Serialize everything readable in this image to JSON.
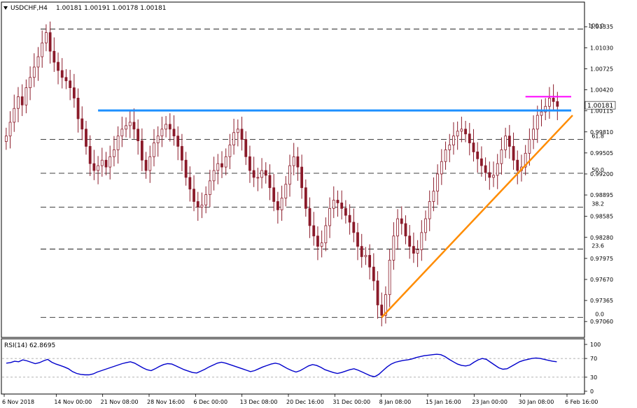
{
  "header": {
    "symbol": "USDCHF,H4",
    "ohlc": "1.00181 1.00191 1.00178 1.00181"
  },
  "indicator": {
    "label": "RSI(14) 62.8695"
  },
  "colors": {
    "candle": "#8b1b2a",
    "resistance": "#1e90ff",
    "support": "#ff8c00",
    "top": "#ff00ff",
    "rsi": "#0000cc",
    "price_tag_bg": "#ffffff"
  },
  "chart_data": [
    {
      "type": "candlestick",
      "title": "",
      "price_axis": {
        "range": [
          0.9691,
          1.0153
        ],
        "ticks": [
          "1.01335",
          "1.01030",
          "1.00725",
          "1.00420",
          "1.00115",
          "0.99810",
          "0.99505",
          "0.99200",
          "0.98895",
          "0.98585",
          "0.98280",
          "0.97975",
          "0.97670",
          "0.97365",
          "0.97060"
        ]
      },
      "time_axis": {
        "ticks": [
          "6 Nov 2018",
          "14 Nov 00:00",
          "21 Nov 08:00",
          "28 Nov 16:00",
          "6 Dec 00:00",
          "13 Dec 08:00",
          "20 Dec 16:00",
          "31 Dec 00:00",
          "8 Jan 08:00",
          "15 Jan 16:00",
          "23 Jan 00:00",
          "30 Jan 08:00",
          "6 Feb 16:00"
        ]
      },
      "current_price": "1.00181",
      "fibonacci_levels": [
        {
          "label": "100.0",
          "price": 1.013
        },
        {
          "label": "61.8",
          "price": 0.997
        },
        {
          "label": "50.0",
          "price": 0.9921
        },
        {
          "label": "38.2",
          "price": 0.9872
        },
        {
          "label": "23.6",
          "price": 0.9811
        },
        {
          "label": "0.0",
          "price": 0.9712
        }
      ],
      "closes": [
        0.9975,
        0.9995,
        1.0015,
        1.0032,
        1.002,
        1.0045,
        1.006,
        1.0075,
        1.009,
        1.011,
        1.0125,
        1.0098,
        1.0082,
        1.007,
        1.006,
        1.0055,
        1.0045,
        1.003,
        1.0,
        0.9985,
        0.996,
        0.9935,
        0.9925,
        0.9932,
        0.994,
        0.993,
        0.9945,
        0.9955,
        0.9975,
        0.9985,
        0.999,
        0.9995,
        0.9985,
        0.9968,
        0.994,
        0.9925,
        0.9945,
        0.9965,
        0.9975,
        0.9985,
        0.9992,
        0.9985,
        0.9975,
        0.996,
        0.994,
        0.9915,
        0.9898,
        0.988,
        0.9872,
        0.9875,
        0.989,
        0.991,
        0.9925,
        0.9935,
        0.993,
        0.9945,
        0.9962,
        0.998,
        0.9985,
        0.997,
        0.9945,
        0.9925,
        0.9915,
        0.9915,
        0.9925,
        0.9918,
        0.99,
        0.988,
        0.9868,
        0.9885,
        0.9905,
        0.9932,
        0.9945,
        0.993,
        0.99,
        0.987,
        0.9845,
        0.983,
        0.9815,
        0.982,
        0.9845,
        0.987,
        0.9882,
        0.9878,
        0.987,
        0.986,
        0.985,
        0.9835,
        0.9815,
        0.98,
        0.9802,
        0.9785,
        0.9765,
        0.973,
        0.9715,
        0.9745,
        0.9795,
        0.983,
        0.9855,
        0.9848,
        0.983,
        0.9815,
        0.9805,
        0.981,
        0.9835,
        0.9855,
        0.988,
        0.9895,
        0.992,
        0.9938,
        0.9955,
        0.9962,
        0.9975,
        0.9982,
        0.9985,
        0.9978,
        0.9965,
        0.9952,
        0.9942,
        0.9932,
        0.9922,
        0.9915,
        0.9918,
        0.9935,
        0.9955,
        0.9975,
        0.996,
        0.994,
        0.9925,
        0.993,
        0.995,
        0.997,
        0.9985,
        1.0005,
        1.001,
        1.0018,
        1.003,
        1.0025,
        1.0018
      ],
      "trendlines": [
        {
          "name": "horizontal resistance",
          "price": 1.0012
        },
        {
          "name": "rising support",
          "from_price": 0.9712,
          "to_price": 1.0005
        },
        {
          "name": "recent top",
          "price": 1.0032
        }
      ]
    },
    {
      "type": "line",
      "title": "RSI(14) 62.8695",
      "y_axis": {
        "range": [
          0,
          100
        ],
        "ticks": [
          "100",
          "70",
          "30",
          "0"
        ]
      },
      "levels": [
        70,
        30
      ],
      "values": [
        60,
        61,
        64,
        63,
        67,
        65,
        62,
        59,
        61,
        65,
        68,
        62,
        58,
        55,
        52,
        48,
        42,
        38,
        36,
        35,
        35,
        37,
        41,
        44,
        47,
        50,
        53,
        56,
        59,
        61,
        63,
        60,
        55,
        50,
        46,
        44,
        48,
        53,
        57,
        59,
        58,
        54,
        50,
        46,
        43,
        40,
        39,
        43,
        47,
        52,
        56,
        60,
        62,
        60,
        57,
        54,
        51,
        48,
        45,
        42,
        44,
        48,
        52,
        55,
        58,
        60,
        58,
        53,
        48,
        44,
        41,
        44,
        49,
        54,
        57,
        55,
        51,
        46,
        43,
        40,
        38,
        40,
        43,
        46,
        48,
        45,
        41,
        37,
        33,
        31,
        36,
        44,
        52,
        58,
        62,
        64,
        66,
        67,
        69,
        72,
        74,
        76,
        77,
        78,
        79,
        78,
        74,
        68,
        63,
        58,
        55,
        54,
        56,
        62,
        67,
        70,
        68,
        62,
        56,
        50,
        47,
        48,
        53,
        58,
        63,
        66,
        68,
        70,
        71,
        70,
        68,
        66,
        64,
        63
      ]
    }
  ]
}
